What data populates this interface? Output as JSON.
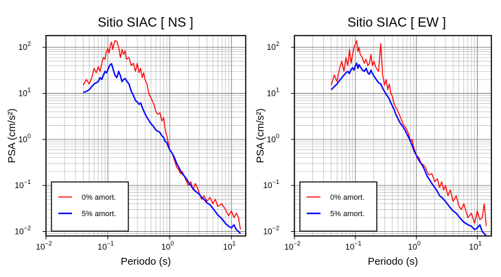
{
  "chart_data": [
    {
      "type": "line",
      "title": "Sitio SIAC [ NS ]",
      "xlabel": "Periodo (s)",
      "ylabel": "PSA (cm/s²)",
      "xscale": "log",
      "yscale": "log",
      "xlim": [
        0.01,
        17
      ],
      "ylim": [
        0.008,
        180
      ],
      "xticks": [
        {
          "base": "10",
          "exp": "−2"
        },
        {
          "base": "10",
          "exp": "−1"
        },
        {
          "base": "10",
          "exp": "0"
        },
        {
          "base": "10",
          "exp": "1"
        }
      ],
      "yticks": [
        {
          "base": "10",
          "exp": "−2"
        },
        {
          "base": "10",
          "exp": "−1"
        },
        {
          "base": "10",
          "exp": "0"
        },
        {
          "base": "10",
          "exp": "1"
        },
        {
          "base": "10",
          "exp": "2"
        }
      ],
      "grid": true,
      "legend_position": "bottom-left",
      "series": [
        {
          "name": "0% amort.",
          "color": "#ff0000",
          "x": [
            0.04,
            0.045,
            0.05,
            0.055,
            0.06,
            0.065,
            0.07,
            0.075,
            0.08,
            0.085,
            0.09,
            0.095,
            0.1,
            0.105,
            0.11,
            0.115,
            0.12,
            0.13,
            0.14,
            0.15,
            0.16,
            0.17,
            0.18,
            0.19,
            0.2,
            0.22,
            0.24,
            0.26,
            0.28,
            0.3,
            0.32,
            0.34,
            0.36,
            0.38,
            0.4,
            0.43,
            0.46,
            0.5,
            0.55,
            0.6,
            0.65,
            0.7,
            0.75,
            0.8,
            0.85,
            0.9,
            1.0,
            1.1,
            1.2,
            1.3,
            1.4,
            1.5,
            1.6,
            1.8,
            2.0,
            2.2,
            2.4,
            2.6,
            2.8,
            3.0,
            3.3,
            3.6,
            4.0,
            4.5,
            5.0,
            5.5,
            6.0,
            7.0,
            8.0,
            9.0,
            10.0,
            11.0,
            12.0,
            13.0,
            14.0
          ],
          "y": [
            15,
            20,
            16,
            22,
            35,
            28,
            38,
            30,
            45,
            60,
            55,
            80,
            95,
            75,
            110,
            130,
            90,
            140,
            135,
            100,
            60,
            90,
            70,
            85,
            55,
            60,
            40,
            45,
            30,
            45,
            28,
            35,
            22,
            28,
            20,
            16,
            10,
            8,
            6,
            4,
            3.5,
            3.8,
            2.5,
            3.0,
            1.6,
            1.2,
            0.6,
            0.5,
            0.35,
            0.25,
            0.22,
            0.18,
            0.2,
            0.14,
            0.1,
            0.12,
            0.08,
            0.11,
            0.09,
            0.07,
            0.05,
            0.06,
            0.045,
            0.055,
            0.04,
            0.05,
            0.035,
            0.04,
            0.03,
            0.022,
            0.028,
            0.02,
            0.025,
            0.02,
            0.011
          ]
        },
        {
          "name": "5% amort.",
          "color": "#0000ff",
          "x": [
            0.04,
            0.045,
            0.05,
            0.055,
            0.06,
            0.065,
            0.07,
            0.075,
            0.08,
            0.085,
            0.09,
            0.095,
            0.1,
            0.105,
            0.11,
            0.115,
            0.12,
            0.13,
            0.14,
            0.15,
            0.16,
            0.17,
            0.18,
            0.19,
            0.2,
            0.22,
            0.24,
            0.26,
            0.28,
            0.3,
            0.32,
            0.34,
            0.36,
            0.38,
            0.4,
            0.43,
            0.46,
            0.5,
            0.55,
            0.6,
            0.65,
            0.7,
            0.75,
            0.8,
            0.85,
            0.9,
            1.0,
            1.1,
            1.2,
            1.3,
            1.4,
            1.5,
            1.6,
            1.8,
            2.0,
            2.2,
            2.4,
            2.6,
            2.8,
            3.0,
            3.3,
            3.6,
            4.0,
            4.5,
            5.0,
            5.5,
            6.0,
            7.0,
            8.0,
            9.0,
            10.0,
            11.0,
            12.0,
            13.0,
            14.0
          ],
          "y": [
            10.5,
            11,
            12,
            14,
            16,
            17,
            18,
            22,
            20,
            25,
            30,
            28,
            32,
            38,
            42,
            44,
            36,
            25,
            22,
            30,
            24,
            18,
            20,
            21,
            19,
            16,
            11,
            9,
            7,
            6.5,
            5.8,
            6.2,
            5.0,
            4.2,
            3.6,
            3.0,
            2.6,
            2.2,
            1.9,
            1.6,
            1.5,
            1.4,
            1.2,
            1.1,
            0.9,
            0.85,
            0.6,
            0.5,
            0.4,
            0.3,
            0.25,
            0.21,
            0.18,
            0.15,
            0.12,
            0.1,
            0.085,
            0.075,
            0.07,
            0.065,
            0.055,
            0.05,
            0.042,
            0.038,
            0.032,
            0.027,
            0.023,
            0.019,
            0.015,
            0.013,
            0.012,
            0.014,
            0.011,
            0.01,
            0.009
          ]
        }
      ]
    },
    {
      "type": "line",
      "title": "Sitio SIAC [ EW ]",
      "xlabel": "Periodo (s)",
      "ylabel": "PSA (cm/s²)",
      "xscale": "log",
      "yscale": "log",
      "xlim": [
        0.01,
        17
      ],
      "ylim": [
        0.008,
        180
      ],
      "xticks": [
        {
          "base": "10",
          "exp": "−2"
        },
        {
          "base": "10",
          "exp": "−1"
        },
        {
          "base": "10",
          "exp": "0"
        },
        {
          "base": "10",
          "exp": "1"
        }
      ],
      "yticks": [
        {
          "base": "10",
          "exp": "−2"
        },
        {
          "base": "10",
          "exp": "−1"
        },
        {
          "base": "10",
          "exp": "0"
        },
        {
          "base": "10",
          "exp": "1"
        },
        {
          "base": "10",
          "exp": "2"
        }
      ],
      "grid": true,
      "legend_position": "bottom-left",
      "series": [
        {
          "name": "0% amort.",
          "color": "#ff0000",
          "x": [
            0.04,
            0.045,
            0.05,
            0.055,
            0.06,
            0.065,
            0.07,
            0.075,
            0.08,
            0.085,
            0.09,
            0.095,
            0.1,
            0.105,
            0.11,
            0.115,
            0.12,
            0.13,
            0.14,
            0.15,
            0.16,
            0.17,
            0.18,
            0.19,
            0.2,
            0.22,
            0.24,
            0.26,
            0.28,
            0.3,
            0.32,
            0.34,
            0.36,
            0.38,
            0.4,
            0.43,
            0.46,
            0.5,
            0.55,
            0.6,
            0.65,
            0.7,
            0.75,
            0.8,
            0.85,
            0.9,
            1.0,
            1.1,
            1.2,
            1.3,
            1.4,
            1.5,
            1.6,
            1.8,
            2.0,
            2.2,
            2.4,
            2.6,
            2.8,
            3.0,
            3.3,
            3.6,
            4.0,
            4.5,
            5.0,
            5.5,
            6.0,
            7.0,
            8.0,
            9.0,
            10.0,
            11.0,
            12.0,
            13.0,
            14.0
          ],
          "y": [
            15,
            25,
            18,
            35,
            50,
            30,
            60,
            40,
            90,
            45,
            70,
            100,
            120,
            140,
            80,
            100,
            70,
            60,
            45,
            55,
            40,
            45,
            70,
            40,
            50,
            35,
            30,
            120,
            25,
            15,
            20,
            12,
            16,
            10,
            9,
            6,
            5,
            4,
            3,
            2.2,
            1.9,
            1.6,
            1.3,
            0.9,
            1.0,
            0.7,
            0.45,
            0.4,
            0.3,
            0.28,
            0.25,
            0.2,
            0.17,
            0.18,
            0.12,
            0.14,
            0.09,
            0.12,
            0.08,
            0.1,
            0.06,
            0.08,
            0.045,
            0.06,
            0.035,
            0.03,
            0.04,
            0.02,
            0.025,
            0.015,
            0.028,
            0.018,
            0.02,
            0.04,
            0.013
          ]
        },
        {
          "name": "5% amort.",
          "color": "#0000ff",
          "x": [
            0.04,
            0.045,
            0.05,
            0.055,
            0.06,
            0.065,
            0.07,
            0.075,
            0.08,
            0.085,
            0.09,
            0.095,
            0.1,
            0.105,
            0.11,
            0.115,
            0.12,
            0.13,
            0.14,
            0.15,
            0.16,
            0.17,
            0.18,
            0.19,
            0.2,
            0.22,
            0.24,
            0.26,
            0.28,
            0.3,
            0.32,
            0.34,
            0.36,
            0.38,
            0.4,
            0.43,
            0.46,
            0.5,
            0.55,
            0.6,
            0.65,
            0.7,
            0.75,
            0.8,
            0.85,
            0.9,
            1.0,
            1.1,
            1.2,
            1.3,
            1.4,
            1.5,
            1.6,
            1.8,
            2.0,
            2.2,
            2.4,
            2.6,
            2.8,
            3.0,
            3.3,
            3.6,
            4.0,
            4.5,
            5.0,
            5.5,
            6.0,
            7.0,
            8.0,
            9.0,
            10.0,
            11.0,
            12.0,
            13.0,
            14.0
          ],
          "y": [
            12,
            14,
            16,
            19,
            22,
            25,
            28,
            30,
            27,
            33,
            36,
            32,
            40,
            45,
            35,
            42,
            38,
            32,
            30,
            35,
            28,
            26,
            32,
            27,
            24,
            20,
            17,
            16,
            13,
            11,
            9.5,
            8.5,
            7.5,
            6.3,
            5.5,
            4.5,
            3.5,
            2.8,
            2.2,
            1.9,
            1.6,
            1.3,
            1.1,
            0.9,
            0.75,
            0.6,
            0.45,
            0.35,
            0.3,
            0.25,
            0.2,
            0.16,
            0.14,
            0.11,
            0.09,
            0.075,
            0.06,
            0.055,
            0.05,
            0.045,
            0.038,
            0.033,
            0.028,
            0.025,
            0.021,
            0.018,
            0.016,
            0.014,
            0.013,
            0.011,
            0.012,
            0.014,
            0.01,
            0.009,
            0.008
          ]
        }
      ]
    }
  ]
}
